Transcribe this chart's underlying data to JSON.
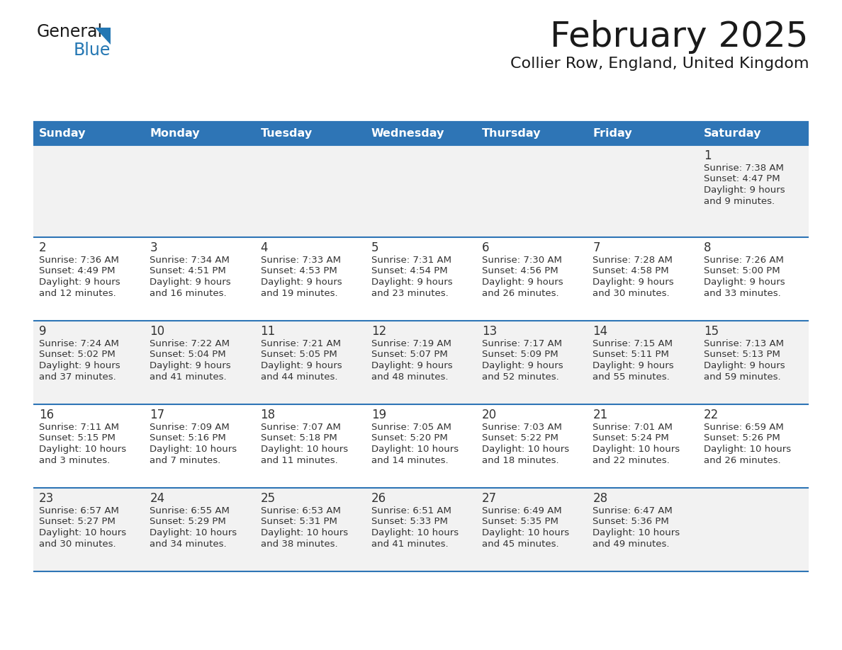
{
  "title": "February 2025",
  "subtitle": "Collier Row, England, United Kingdom",
  "days_of_week": [
    "Sunday",
    "Monday",
    "Tuesday",
    "Wednesday",
    "Thursday",
    "Friday",
    "Saturday"
  ],
  "header_bg": "#2e75b6",
  "header_text": "#ffffff",
  "row_bg_odd": "#f2f2f2",
  "row_bg_even": "#ffffff",
  "cell_border_color": "#2e75b6",
  "day_number_color": "#333333",
  "info_text_color": "#333333",
  "title_color": "#1a1a1a",
  "subtitle_color": "#1a1a1a",
  "logo_black_color": "#1a1a1a",
  "logo_blue_color": "#2477b3",
  "week_rows": [
    {
      "days": [
        null,
        null,
        null,
        null,
        null,
        null,
        1
      ]
    },
    {
      "days": [
        2,
        3,
        4,
        5,
        6,
        7,
        8
      ]
    },
    {
      "days": [
        9,
        10,
        11,
        12,
        13,
        14,
        15
      ]
    },
    {
      "days": [
        16,
        17,
        18,
        19,
        20,
        21,
        22
      ]
    },
    {
      "days": [
        23,
        24,
        25,
        26,
        27,
        28,
        null
      ]
    }
  ],
  "day_data": {
    "1": {
      "sunrise": "7:38 AM",
      "sunset": "4:47 PM",
      "daylight": "9 hours and 9 minutes"
    },
    "2": {
      "sunrise": "7:36 AM",
      "sunset": "4:49 PM",
      "daylight": "9 hours and 12 minutes"
    },
    "3": {
      "sunrise": "7:34 AM",
      "sunset": "4:51 PM",
      "daylight": "9 hours and 16 minutes"
    },
    "4": {
      "sunrise": "7:33 AM",
      "sunset": "4:53 PM",
      "daylight": "9 hours and 19 minutes"
    },
    "5": {
      "sunrise": "7:31 AM",
      "sunset": "4:54 PM",
      "daylight": "9 hours and 23 minutes"
    },
    "6": {
      "sunrise": "7:30 AM",
      "sunset": "4:56 PM",
      "daylight": "9 hours and 26 minutes"
    },
    "7": {
      "sunrise": "7:28 AM",
      "sunset": "4:58 PM",
      "daylight": "9 hours and 30 minutes"
    },
    "8": {
      "sunrise": "7:26 AM",
      "sunset": "5:00 PM",
      "daylight": "9 hours and 33 minutes"
    },
    "9": {
      "sunrise": "7:24 AM",
      "sunset": "5:02 PM",
      "daylight": "9 hours and 37 minutes"
    },
    "10": {
      "sunrise": "7:22 AM",
      "sunset": "5:04 PM",
      "daylight": "9 hours and 41 minutes"
    },
    "11": {
      "sunrise": "7:21 AM",
      "sunset": "5:05 PM",
      "daylight": "9 hours and 44 minutes"
    },
    "12": {
      "sunrise": "7:19 AM",
      "sunset": "5:07 PM",
      "daylight": "9 hours and 48 minutes"
    },
    "13": {
      "sunrise": "7:17 AM",
      "sunset": "5:09 PM",
      "daylight": "9 hours and 52 minutes"
    },
    "14": {
      "sunrise": "7:15 AM",
      "sunset": "5:11 PM",
      "daylight": "9 hours and 55 minutes"
    },
    "15": {
      "sunrise": "7:13 AM",
      "sunset": "5:13 PM",
      "daylight": "9 hours and 59 minutes"
    },
    "16": {
      "sunrise": "7:11 AM",
      "sunset": "5:15 PM",
      "daylight": "10 hours and 3 minutes"
    },
    "17": {
      "sunrise": "7:09 AM",
      "sunset": "5:16 PM",
      "daylight": "10 hours and 7 minutes"
    },
    "18": {
      "sunrise": "7:07 AM",
      "sunset": "5:18 PM",
      "daylight": "10 hours and 11 minutes"
    },
    "19": {
      "sunrise": "7:05 AM",
      "sunset": "5:20 PM",
      "daylight": "10 hours and 14 minutes"
    },
    "20": {
      "sunrise": "7:03 AM",
      "sunset": "5:22 PM",
      "daylight": "10 hours and 18 minutes"
    },
    "21": {
      "sunrise": "7:01 AM",
      "sunset": "5:24 PM",
      "daylight": "10 hours and 22 minutes"
    },
    "22": {
      "sunrise": "6:59 AM",
      "sunset": "5:26 PM",
      "daylight": "10 hours and 26 minutes"
    },
    "23": {
      "sunrise": "6:57 AM",
      "sunset": "5:27 PM",
      "daylight": "10 hours and 30 minutes"
    },
    "24": {
      "sunrise": "6:55 AM",
      "sunset": "5:29 PM",
      "daylight": "10 hours and 34 minutes"
    },
    "25": {
      "sunrise": "6:53 AM",
      "sunset": "5:31 PM",
      "daylight": "10 hours and 38 minutes"
    },
    "26": {
      "sunrise": "6:51 AM",
      "sunset": "5:33 PM",
      "daylight": "10 hours and 41 minutes"
    },
    "27": {
      "sunrise": "6:49 AM",
      "sunset": "5:35 PM",
      "daylight": "10 hours and 45 minutes"
    },
    "28": {
      "sunrise": "6:47 AM",
      "sunset": "5:36 PM",
      "daylight": "10 hours and 49 minutes"
    }
  }
}
